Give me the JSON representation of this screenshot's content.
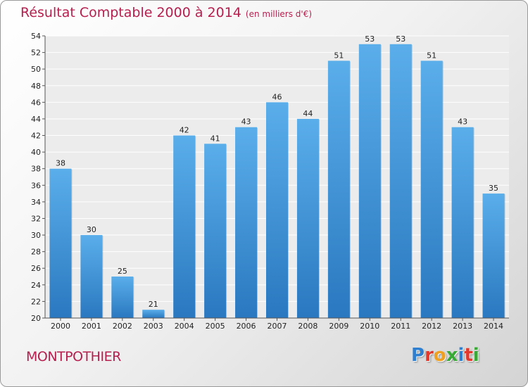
{
  "chart_data": {
    "type": "bar",
    "title": "Résultat Comptable 2000 à 2014",
    "subtitle": "(en milliers d'€)",
    "xlabel": "",
    "ylabel": "",
    "categories": [
      "2000",
      "2001",
      "2002",
      "2003",
      "2004",
      "2005",
      "2006",
      "2007",
      "2008",
      "2009",
      "2010",
      "2011",
      "2012",
      "2013",
      "2014"
    ],
    "values": [
      38,
      30,
      25,
      21,
      42,
      41,
      43,
      46,
      44,
      51,
      53,
      53,
      51,
      43,
      35
    ],
    "ylim": [
      20,
      54
    ],
    "yticks": [
      20,
      22,
      24,
      26,
      28,
      30,
      32,
      34,
      36,
      38,
      40,
      42,
      44,
      46,
      48,
      50,
      52,
      54
    ],
    "grid": true,
    "bar_color": "#3d95da"
  },
  "footer": {
    "commune": "MONTPOTHIER",
    "logo_letters": [
      "P",
      "r",
      "o",
      "x",
      "i",
      "t",
      "i"
    ],
    "logo_colors": [
      "#2e7fd0",
      "#e2392c",
      "#f0a020",
      "#39a935",
      "#2e7fd0",
      "#e2392c",
      "#39a935"
    ]
  }
}
